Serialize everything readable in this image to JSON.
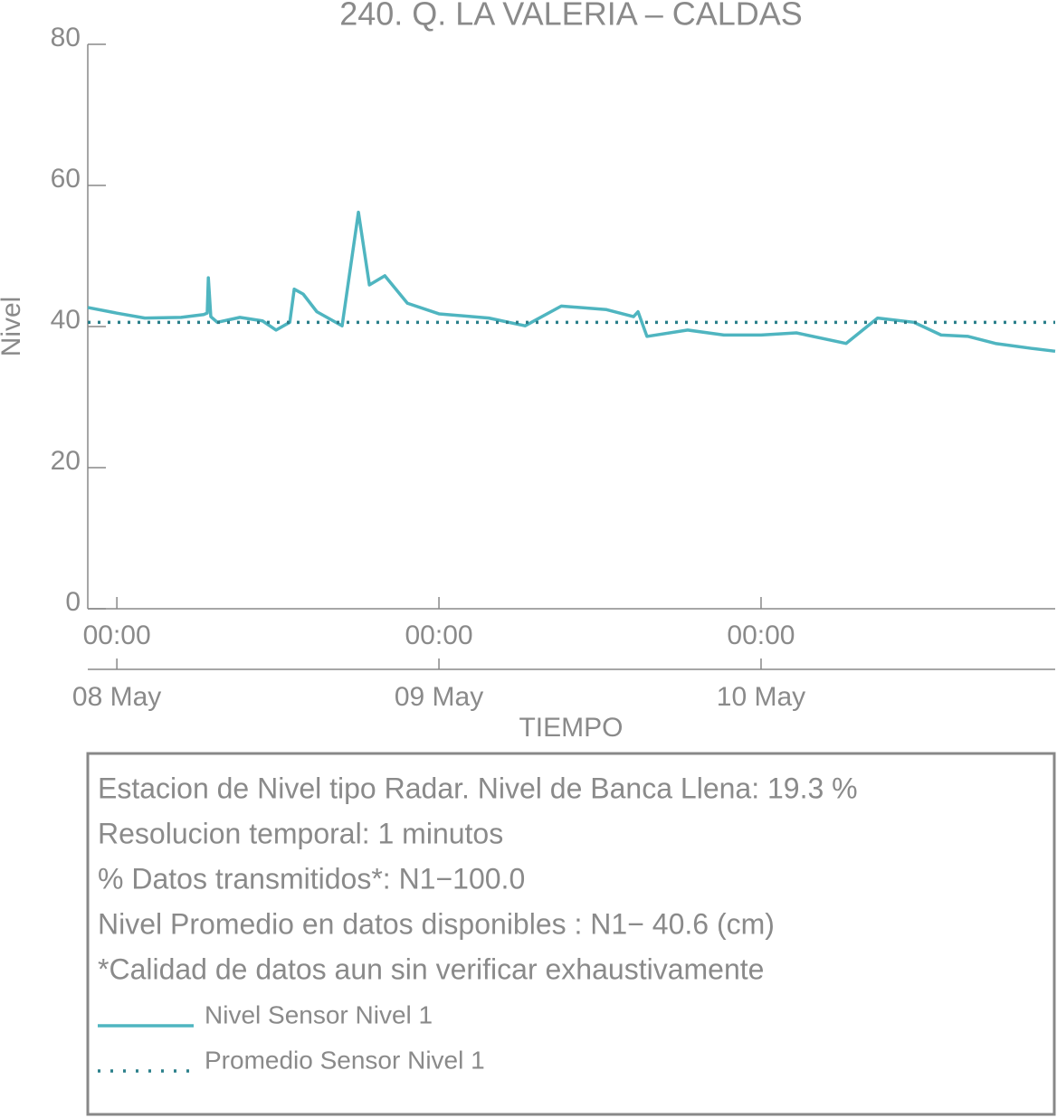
{
  "chart_data": {
    "type": "line",
    "title": "240. Q. LA VALERIA – CALDAS",
    "x_label": "TIEMPO",
    "y_label": "Nivel",
    "xlim": [
      "07 May 21:50",
      "10 May 21:55"
    ],
    "xticks": [
      {
        "value": "08 May 00:00",
        "label": "00:00"
      },
      {
        "value": "09 May 00:00",
        "label": "00:00"
      },
      {
        "value": "10 May 00:00",
        "label": "00:00"
      }
    ],
    "xticks_dates": [
      {
        "value": "08 May 00:00",
        "label": "08 May"
      },
      {
        "value": "09 May 00:00",
        "label": "09 May"
      },
      {
        "value": "10 May 00:00",
        "label": "10 May"
      }
    ],
    "ylim": [
      0,
      80
    ],
    "yticks": [
      0,
      20,
      40,
      60,
      80
    ],
    "series": [
      {
        "name": "Nivel Sensor Nivel 1",
        "color": "#4fb5c0",
        "style": "solid",
        "x": [
          "07 May 21:50",
          "08 May 00:00",
          "08 May 02:05",
          "08 May 04:47",
          "08 May 06:28",
          "08 May 06:44",
          "08 May 06:49",
          "08 May 07:00",
          "08 May 07:29",
          "08 May 09:10",
          "08 May 10:51",
          "08 May 11:52",
          "08 May 12:53",
          "08 May 13:13",
          "08 May 13:53",
          "08 May 14:54",
          "08 May 16:47",
          "08 May 17:16",
          "08 May 18:00",
          "08 May 18:49",
          "08 May 19:58",
          "08 May 21:39",
          "09 May 00:00",
          "09 May 03:43",
          "09 May 06:25",
          "09 May 09:07",
          "09 May 12:29",
          "09 May 14:30",
          "09 May 14:50",
          "09 May 15:30",
          "09 May 18:32",
          "09 May 21:14",
          "10 May 00:00",
          "10 May 02:38",
          "10 May 06:20",
          "10 May 08:41",
          "10 May 11:23",
          "10 May 13:25",
          "10 May 15:26",
          "10 May 17:28",
          "10 May 20:10",
          "10 May 21:55"
        ],
        "values": [
          42.7,
          41.9,
          41.2,
          41.3,
          41.7,
          41.9,
          46.9,
          41.4,
          40.6,
          41.3,
          40.8,
          39.5,
          40.6,
          45.3,
          44.6,
          42.1,
          40.1,
          46.5,
          56.2,
          45.9,
          47.2,
          43.3,
          41.8,
          41.2,
          40.1,
          42.9,
          42.4,
          41.4,
          42.1,
          38.6,
          39.5,
          38.8,
          38.8,
          39.1,
          37.6,
          41.2,
          40.6,
          38.8,
          38.6,
          37.6,
          36.9,
          36.5
        ]
      },
      {
        "name": "Promedio Sensor Nivel 1",
        "color": "#2a7f8a",
        "style": "dotted",
        "x": [
          "07 May 21:50",
          "10 May 21:55"
        ],
        "values": [
          40.6,
          40.6
        ]
      }
    ],
    "notes": [
      "Estacion de Nivel tipo Radar. Nivel de Banca Llena: 19.3 %",
      "Resolucion temporal: 1 minutos",
      "% Datos transmitidos*: N1−100.0",
      "Nivel Promedio en datos disponibles : N1− 40.6 (cm)",
      "*Calidad de datos aun sin verificar exhaustivamente"
    ]
  }
}
